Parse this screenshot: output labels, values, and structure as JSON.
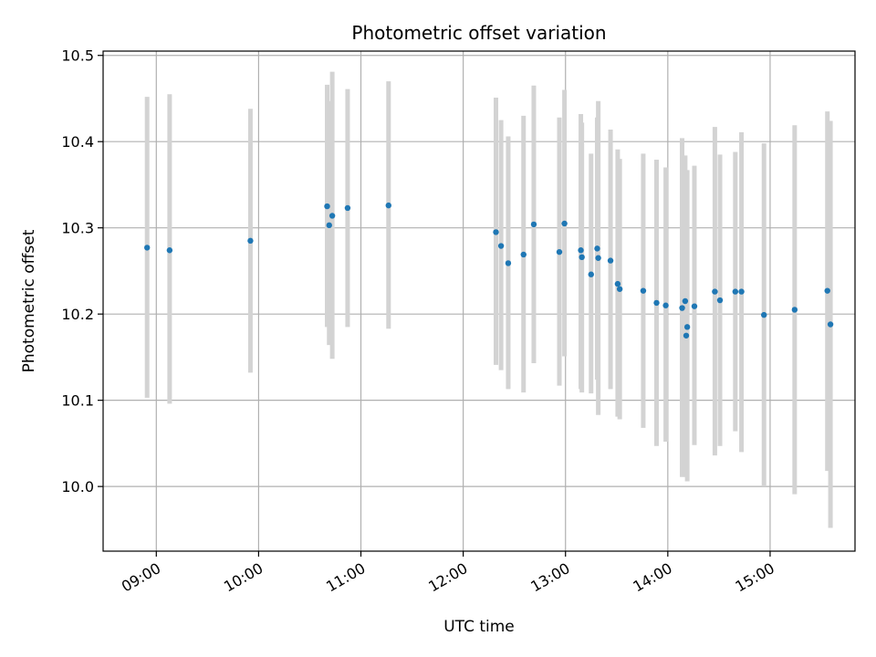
{
  "chart_data": {
    "type": "scatter",
    "title": "Photometric offset variation",
    "xlabel": "UTC time",
    "ylabel": "Photometric offset",
    "x_unit": "hours UTC",
    "xlim": [
      8.48,
      15.83
    ],
    "ylim": [
      9.925,
      10.505
    ],
    "xticks": [
      9,
      10,
      11,
      12,
      13,
      14,
      15
    ],
    "xtick_labels": [
      "09:00",
      "10:00",
      "11:00",
      "12:00",
      "13:00",
      "14:00",
      "15:00"
    ],
    "yticks": [
      10.0,
      10.1,
      10.2,
      10.3,
      10.4,
      10.5
    ],
    "ytick_labels": [
      "10.0",
      "10.1",
      "10.2",
      "10.3",
      "10.4",
      "10.5"
    ],
    "grid": true,
    "colors": {
      "points": "#1f77b4",
      "errorbars": "#d3d3d3",
      "grid": "#b0b0b0"
    },
    "points": [
      {
        "x": 8.91,
        "y": 10.277,
        "lo": 10.103,
        "hi": 10.452
      },
      {
        "x": 9.13,
        "y": 10.274,
        "lo": 10.096,
        "hi": 10.455
      },
      {
        "x": 9.92,
        "y": 10.285,
        "lo": 10.132,
        "hi": 10.438
      },
      {
        "x": 10.67,
        "y": 10.325,
        "lo": 10.185,
        "hi": 10.466
      },
      {
        "x": 10.69,
        "y": 10.303,
        "lo": 10.164,
        "hi": 10.447
      },
      {
        "x": 10.72,
        "y": 10.314,
        "lo": 10.148,
        "hi": 10.481
      },
      {
        "x": 10.87,
        "y": 10.323,
        "lo": 10.185,
        "hi": 10.461
      },
      {
        "x": 11.27,
        "y": 10.326,
        "lo": 10.183,
        "hi": 10.47
      },
      {
        "x": 12.32,
        "y": 10.295,
        "lo": 10.141,
        "hi": 10.451
      },
      {
        "x": 12.37,
        "y": 10.279,
        "lo": 10.135,
        "hi": 10.425
      },
      {
        "x": 12.44,
        "y": 10.259,
        "lo": 10.113,
        "hi": 10.406
      },
      {
        "x": 12.59,
        "y": 10.269,
        "lo": 10.109,
        "hi": 10.43
      },
      {
        "x": 12.69,
        "y": 10.304,
        "lo": 10.143,
        "hi": 10.465
      },
      {
        "x": 12.94,
        "y": 10.272,
        "lo": 10.117,
        "hi": 10.428
      },
      {
        "x": 12.99,
        "y": 10.305,
        "lo": 10.151,
        "hi": 10.46
      },
      {
        "x": 13.15,
        "y": 10.274,
        "lo": 10.113,
        "hi": 10.432
      },
      {
        "x": 13.16,
        "y": 10.266,
        "lo": 10.109,
        "hi": 10.422
      },
      {
        "x": 13.25,
        "y": 10.246,
        "lo": 10.108,
        "hi": 10.386
      },
      {
        "x": 13.31,
        "y": 10.276,
        "lo": 10.124,
        "hi": 10.428
      },
      {
        "x": 13.32,
        "y": 10.265,
        "lo": 10.083,
        "hi": 10.447
      },
      {
        "x": 13.44,
        "y": 10.262,
        "lo": 10.113,
        "hi": 10.414
      },
      {
        "x": 13.51,
        "y": 10.235,
        "lo": 10.081,
        "hi": 10.391
      },
      {
        "x": 13.53,
        "y": 10.229,
        "lo": 10.078,
        "hi": 10.38
      },
      {
        "x": 13.76,
        "y": 10.227,
        "lo": 10.068,
        "hi": 10.386
      },
      {
        "x": 13.89,
        "y": 10.213,
        "lo": 10.047,
        "hi": 10.379
      },
      {
        "x": 13.98,
        "y": 10.21,
        "lo": 10.052,
        "hi": 10.37
      },
      {
        "x": 14.14,
        "y": 10.207,
        "lo": 10.011,
        "hi": 10.404
      },
      {
        "x": 14.17,
        "y": 10.215,
        "lo": 10.038,
        "hi": 10.384
      },
      {
        "x": 14.19,
        "y": 10.185,
        "lo": 10.006,
        "hi": 10.367
      },
      {
        "x": 14.18,
        "y": 10.175,
        "lo": 10.011,
        "hi": 10.366
      },
      {
        "x": 14.26,
        "y": 10.209,
        "lo": 10.048,
        "hi": 10.372
      },
      {
        "x": 14.46,
        "y": 10.226,
        "lo": 10.036,
        "hi": 10.417
      },
      {
        "x": 14.51,
        "y": 10.216,
        "lo": 10.047,
        "hi": 10.385
      },
      {
        "x": 14.66,
        "y": 10.226,
        "lo": 10.064,
        "hi": 10.388
      },
      {
        "x": 14.72,
        "y": 10.226,
        "lo": 10.04,
        "hi": 10.411
      },
      {
        "x": 14.94,
        "y": 10.199,
        "lo": 10.0,
        "hi": 10.398
      },
      {
        "x": 15.24,
        "y": 10.205,
        "lo": 9.991,
        "hi": 10.419
      },
      {
        "x": 15.56,
        "y": 10.227,
        "lo": 10.018,
        "hi": 10.435
      },
      {
        "x": 15.59,
        "y": 10.188,
        "lo": 9.952,
        "hi": 10.424
      }
    ]
  }
}
